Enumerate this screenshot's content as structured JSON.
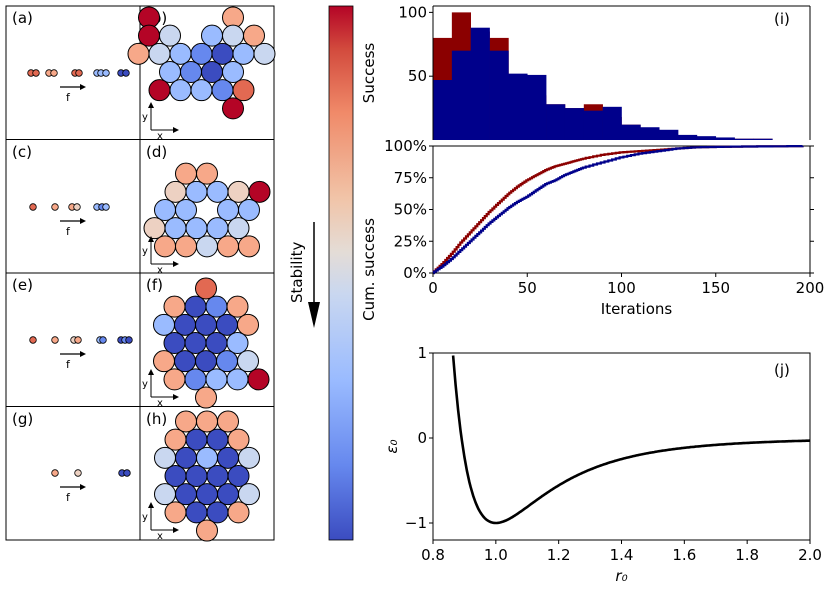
{
  "panel_labels": {
    "a": "(a)",
    "b": "(b)",
    "c": "(c)",
    "d": "(d)",
    "e": "(e)",
    "f": "(f)",
    "g": "(g)",
    "h": "(h)",
    "i": "(i)",
    "j": "(j)"
  },
  "force_label": "f",
  "axis_x_label": "x",
  "axis_y_label": "y",
  "stability_label": "Stability",
  "colormap": [
    "#3b4cc0",
    "#6688ee",
    "#9abbff",
    "#c9d7f0",
    "#edd1c2",
    "#f7a889",
    "#e26952",
    "#b40426"
  ],
  "chart_data": [
    {
      "type": "bar",
      "ylabel": "Success",
      "ylim": [
        0,
        105
      ],
      "xlim": [
        0,
        200
      ],
      "yticks": [
        "50",
        "100"
      ],
      "bin_edges": [
        0,
        10,
        20,
        30,
        40,
        50,
        60,
        70,
        80,
        90,
        100,
        110,
        120,
        130,
        140,
        150,
        160,
        170,
        180,
        190,
        200
      ],
      "series": [
        {
          "color": "#8b0000",
          "values": [
            80,
            100,
            85,
            80,
            43,
            35,
            28,
            25,
            28,
            18,
            12,
            7,
            4,
            3,
            2,
            1,
            1,
            1,
            0,
            0
          ]
        },
        {
          "color": "#00008b",
          "values": [
            47,
            70,
            88,
            70,
            52,
            51,
            28,
            25,
            23,
            26,
            12,
            10,
            8,
            4,
            3,
            2,
            1,
            1,
            0,
            0
          ]
        }
      ]
    },
    {
      "type": "line",
      "xlabel": "Iterations",
      "ylabel": "Cum. success",
      "xlim": [
        0,
        200
      ],
      "ylim": [
        0,
        100
      ],
      "xticks": [
        "0",
        "50",
        "100",
        "150",
        "200"
      ],
      "yticks": [
        "0%",
        "25%",
        "50%",
        "75%",
        "100%"
      ],
      "series": [
        {
          "color": "#8b0000",
          "x": [
            0,
            5,
            10,
            15,
            20,
            25,
            30,
            35,
            40,
            45,
            50,
            55,
            60,
            65,
            70,
            75,
            80,
            90,
            100,
            110,
            120,
            130,
            140,
            160,
            200
          ],
          "y": [
            0,
            7,
            15,
            24,
            32,
            40,
            48,
            55,
            62,
            68,
            73,
            77,
            81,
            84,
            86,
            88,
            90,
            93,
            95,
            96,
            97,
            98,
            99,
            99.5,
            100
          ]
        },
        {
          "color": "#00008b",
          "x": [
            0,
            5,
            10,
            15,
            20,
            25,
            30,
            35,
            40,
            45,
            50,
            55,
            60,
            65,
            70,
            75,
            80,
            90,
            100,
            110,
            120,
            130,
            140,
            160,
            200
          ],
          "y": [
            0,
            5,
            11,
            18,
            25,
            32,
            39,
            45,
            51,
            56,
            60,
            65,
            70,
            73,
            77,
            80,
            83,
            87,
            91,
            94,
            96,
            98,
            99,
            99.5,
            100
          ]
        }
      ]
    },
    {
      "type": "line",
      "xlabel": "r₀",
      "ylabel": "ε₀",
      "xlim": [
        0.8,
        2.0
      ],
      "ylim": [
        -1.2,
        1
      ],
      "xticks": [
        "0.8",
        "1.0",
        "1.2",
        "1.4",
        "1.6",
        "1.8",
        "2.0"
      ],
      "yticks": [
        "−1",
        "0",
        "1"
      ],
      "series": [
        {
          "color": "#000000",
          "function": "lennard-jones"
        }
      ]
    }
  ]
}
